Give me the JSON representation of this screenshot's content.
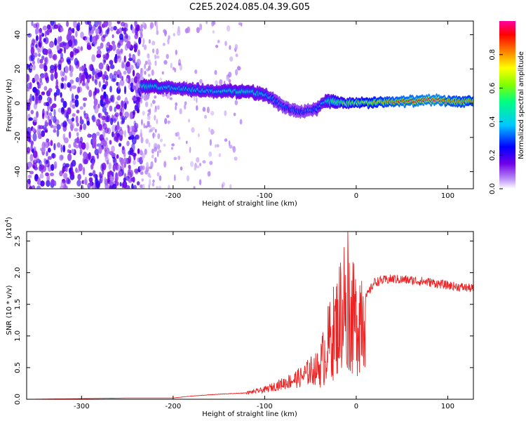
{
  "title": "C2E5.2024.085.04.39.G05",
  "chart_data": [
    {
      "type": "heatmap",
      "title": "C2E5.2024.085.04.39.G05",
      "xlabel": "Height of straight line (km)",
      "ylabel": "Frequency (Hz)",
      "xlim": [
        -360,
        128
      ],
      "ylim": [
        -50,
        48
      ],
      "x_ticks": [
        "-300",
        "-200",
        "-100",
        "0",
        "100"
      ],
      "y_ticks": [
        "-40",
        "-20",
        "0",
        "20",
        "40"
      ],
      "colorbar": {
        "label": "Normalized spectral amplitude",
        "range": [
          0.0,
          1.0
        ],
        "ticks": [
          "0.0",
          "0.2",
          "0.4",
          "0.6",
          "0.8"
        ],
        "colormap": [
          "#ffffff",
          "#b98cf5",
          "#7000e8",
          "#0000ff",
          "#00c8ff",
          "#00ff80",
          "#80ff00",
          "#ffff00",
          "#ff8000",
          "#ff0000",
          "#ff00a0"
        ]
      },
      "ridge": {
        "x": [
          -235,
          -200,
          -160,
          -120,
          -100,
          -90,
          -80,
          -70,
          -60,
          -50,
          -42,
          -35,
          -25,
          -10,
          0,
          50,
          90,
          100,
          128
        ],
        "freq": [
          10,
          9,
          7,
          7,
          5,
          2,
          -2,
          -4,
          -5,
          -4,
          -3,
          1,
          1,
          0,
          0,
          1,
          2,
          1,
          1
        ],
        "amplitude": [
          0.45,
          0.4,
          0.4,
          0.45,
          0.4,
          0.35,
          0.3,
          0.3,
          0.3,
          0.3,
          0.35,
          0.4,
          0.55,
          0.6,
          0.65,
          0.9,
          0.95,
          0.85,
          0.8
        ]
      },
      "noise_region": {
        "x_range": [
          -360,
          -235
        ],
        "amplitude": 0.2
      }
    },
    {
      "type": "line",
      "xlabel": "Height of straight line (km)",
      "ylabel": "SNR (10 * v/v)",
      "y_scale_label": "(x10",
      "y_scale_exp": "4",
      "y_scale_close": ")",
      "xlim": [
        -360,
        128
      ],
      "ylim": [
        0,
        2.65
      ],
      "x_ticks": [
        "-300",
        "-200",
        "-100",
        "0",
        "100"
      ],
      "y_ticks": [
        "0.0",
        "0.5",
        "1.0",
        "1.5",
        "2.0",
        "2.5"
      ],
      "series": [
        {
          "color": "#ee2222",
          "x": [
            -360,
            -300,
            -250,
            -200,
            -180,
            -150,
            -120,
            -100,
            -80,
            -60,
            -50,
            -40,
            -30,
            -20,
            -15,
            -10,
            -5,
            0,
            10,
            20,
            30,
            40,
            60,
            80,
            100,
            110,
            128
          ],
          "y": [
            0.0,
            0.01,
            0.02,
            0.02,
            0.05,
            0.08,
            0.1,
            0.15,
            0.25,
            0.35,
            0.45,
            0.5,
            0.9,
            1.2,
            1.5,
            1.6,
            1.3,
            1.2,
            1.6,
            1.85,
            1.88,
            1.9,
            1.88,
            1.85,
            1.8,
            1.78,
            1.75
          ]
        }
      ]
    }
  ]
}
